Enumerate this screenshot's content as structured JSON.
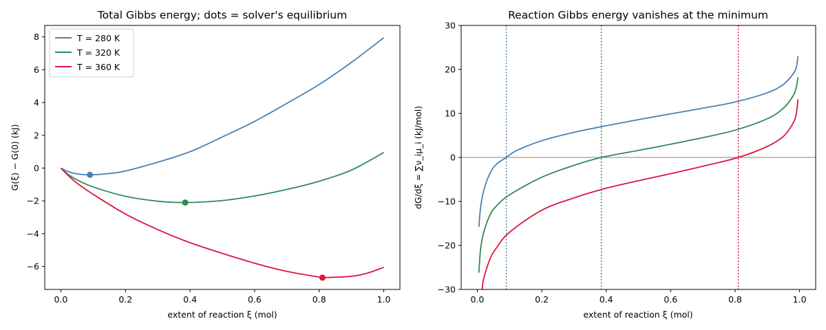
{
  "colors": {
    "t280": "#4682b4",
    "t320": "#2e8b57",
    "t360": "#dc143c",
    "zero_line": "#808080"
  },
  "chart_data": [
    {
      "type": "line",
      "title": "Total Gibbs energy; dots = solver's equilibrium",
      "xlabel": "extent of reaction ξ (mol)",
      "ylabel": "G(ξ) − G(0) (kJ)",
      "xlim": [
        -0.05,
        1.05
      ],
      "ylim": [
        -7.4,
        8.7
      ],
      "xticks": [
        0.0,
        0.2,
        0.4,
        0.6,
        0.8,
        1.0
      ],
      "xtick_labels": [
        "0.0",
        "0.2",
        "0.4",
        "0.6",
        "0.8",
        "1.0"
      ],
      "yticks": [
        -6,
        -4,
        -2,
        0,
        2,
        4,
        6,
        8
      ],
      "ytick_labels": [
        "−6",
        "−4",
        "−2",
        "0",
        "2",
        "4",
        "6",
        "8"
      ],
      "grid": false,
      "legend": {
        "placement": "top-left",
        "entries": [
          "T = 280 K",
          "T = 320 K",
          "T = 360 K"
        ]
      },
      "series": [
        {
          "name": "T = 280 K",
          "color_key": "t280",
          "x": [
            0.0,
            0.02,
            0.05,
            0.09,
            0.15,
            0.2,
            0.3,
            0.4,
            0.5,
            0.6,
            0.7,
            0.8,
            0.9,
            1.0
          ],
          "y": [
            0.0,
            -0.2,
            -0.35,
            -0.41,
            -0.33,
            -0.18,
            0.36,
            1.0,
            1.9,
            2.85,
            3.95,
            5.1,
            6.45,
            7.95
          ],
          "equilibrium": {
            "x": 0.09,
            "y": -0.41
          }
        },
        {
          "name": "T = 320 K",
          "color_key": "t320",
          "x": [
            0.0,
            0.02,
            0.05,
            0.1,
            0.2,
            0.3,
            0.385,
            0.5,
            0.6,
            0.7,
            0.8,
            0.9,
            1.0
          ],
          "y": [
            0.0,
            -0.35,
            -0.72,
            -1.15,
            -1.72,
            -2.02,
            -2.1,
            -1.98,
            -1.7,
            -1.3,
            -0.8,
            -0.12,
            0.95
          ],
          "equilibrium": {
            "x": 0.385,
            "y": -2.1
          }
        },
        {
          "name": "T = 360 K",
          "color_key": "t360",
          "x": [
            0.0,
            0.02,
            0.05,
            0.1,
            0.2,
            0.3,
            0.4,
            0.5,
            0.6,
            0.7,
            0.8,
            0.81,
            0.9,
            0.95,
            1.0
          ],
          "y": [
            0.0,
            -0.4,
            -0.92,
            -1.6,
            -2.8,
            -3.75,
            -4.55,
            -5.2,
            -5.8,
            -6.3,
            -6.65,
            -6.68,
            -6.6,
            -6.4,
            -6.05
          ],
          "equilibrium": {
            "x": 0.81,
            "y": -6.68
          }
        }
      ]
    },
    {
      "type": "line",
      "title": "Reaction Gibbs energy vanishes at the minimum",
      "xlabel": "extent of reaction ξ (mol)",
      "ylabel": "dG/dξ = ∑ν_iμ_i (kJ/mol)",
      "xlim": [
        -0.05,
        1.05
      ],
      "ylim": [
        -30,
        30
      ],
      "xticks": [
        0.0,
        0.2,
        0.4,
        0.6,
        0.8,
        1.0
      ],
      "xtick_labels": [
        "0.0",
        "0.2",
        "0.4",
        "0.6",
        "0.8",
        "1.0"
      ],
      "yticks": [
        -30,
        -20,
        -10,
        0,
        10,
        20,
        30
      ],
      "ytick_labels": [
        "−30",
        "−20",
        "−10",
        "0",
        "10",
        "20",
        "30"
      ],
      "grid": false,
      "zero_line": 0,
      "vlines": [
        {
          "x": 0.09,
          "color_key": "t280"
        },
        {
          "x": 0.385,
          "color_key": "t320"
        },
        {
          "x": 0.81,
          "color_key": "t360"
        }
      ],
      "series": [
        {
          "name": "T = 280 K",
          "color_key": "t280",
          "x": [
            0.005,
            0.01,
            0.02,
            0.04,
            0.06,
            0.09,
            0.12,
            0.2,
            0.3,
            0.4,
            0.5,
            0.6,
            0.7,
            0.8,
            0.9,
            0.95,
            0.98,
            0.99,
            0.995
          ],
          "y": [
            -15.8,
            -11.5,
            -7.5,
            -3.5,
            -1.5,
            0.0,
            1.5,
            3.8,
            5.7,
            7.2,
            8.6,
            9.9,
            11.2,
            12.6,
            14.7,
            16.6,
            19.0,
            20.5,
            23.0
          ]
        },
        {
          "name": "T = 320 K",
          "color_key": "t320",
          "x": [
            0.005,
            0.01,
            0.02,
            0.04,
            0.06,
            0.1,
            0.2,
            0.3,
            0.385,
            0.5,
            0.6,
            0.7,
            0.8,
            0.9,
            0.95,
            0.98,
            0.99,
            0.995
          ],
          "y": [
            -26.2,
            -21.0,
            -17.0,
            -13.0,
            -11.0,
            -8.5,
            -4.5,
            -1.8,
            0.0,
            1.6,
            3.0,
            4.5,
            6.2,
            8.8,
            11.2,
            14.0,
            16.0,
            18.2
          ]
        },
        {
          "name": "T = 360 K",
          "color_key": "t360",
          "x": [
            0.015,
            0.02,
            0.04,
            0.06,
            0.1,
            0.2,
            0.3,
            0.4,
            0.5,
            0.6,
            0.7,
            0.81,
            0.9,
            0.95,
            0.98,
            0.99,
            0.995
          ],
          "y": [
            -30.0,
            -27.5,
            -23.0,
            -20.5,
            -17.0,
            -12.0,
            -9.2,
            -7.0,
            -5.3,
            -3.7,
            -2.0,
            0.0,
            2.5,
            4.8,
            7.8,
            10.0,
            13.2
          ]
        }
      ]
    }
  ]
}
